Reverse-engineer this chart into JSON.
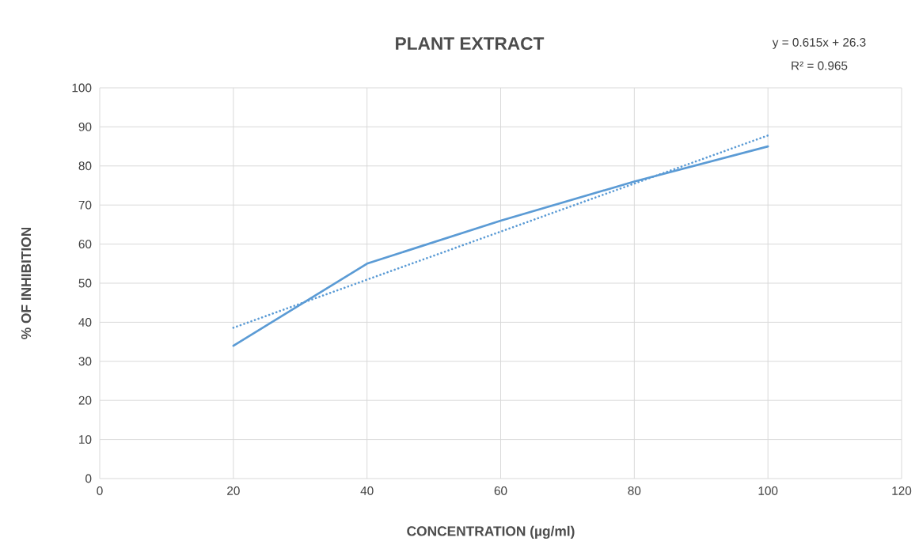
{
  "chart_data": {
    "type": "line",
    "title": "PLANT EXTRACT",
    "xlabel": "CONCENTRATION (µg/ml)",
    "ylabel": "% OF INHIBITION",
    "annotations": [
      "y = 0.615x + 26.3",
      "R² = 0.965"
    ],
    "x": [
      20,
      40,
      60,
      80,
      100
    ],
    "series": [
      {
        "color": "#5b9bd5",
        "values": [
          34,
          55,
          66,
          76,
          85
        ],
        "line_style": "solid"
      },
      {
        "type": "line",
        "color": "#5b9bd5",
        "x": [
          20,
          100
        ],
        "values": [
          38.6,
          87.8
        ],
        "line_style": "dotted"
      }
    ],
    "xlim": [
      0,
      120
    ],
    "xticks": [
      0,
      20,
      40,
      60,
      80,
      100,
      120
    ],
    "ylim": [
      0,
      100
    ],
    "yticks": [
      0,
      10,
      20,
      30,
      40,
      50,
      60,
      70,
      80,
      90,
      100
    ],
    "grid": true,
    "marker": "none"
  }
}
